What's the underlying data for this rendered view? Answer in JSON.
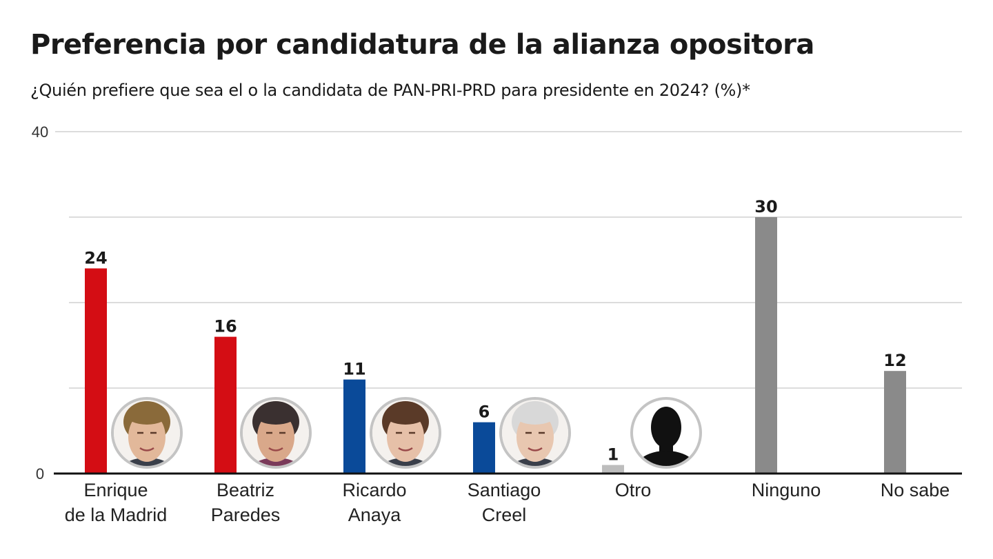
{
  "title": "Preferencia por candidatura de la alianza opositora",
  "subtitle": "¿Quién prefiere que sea el o la candidata de PAN-PRI-PRD para presidente en 2024? (%)*",
  "chart_data": {
    "type": "bar",
    "title": "Preferencia por candidatura de la alianza opositora",
    "subtitle": "¿Quién prefiere que sea el o la candidata de PAN-PRI-PRD para presidente en 2024? (%)*",
    "xlabel": "",
    "ylabel": "",
    "ylim": [
      0,
      40
    ],
    "yticks": [
      0,
      10,
      20,
      30,
      40
    ],
    "ytick_labels": [
      "0",
      "",
      "",
      "",
      "40"
    ],
    "grid": true,
    "categories": [
      [
        "Enrique",
        "de la Madrid"
      ],
      [
        "Beatriz",
        "Paredes"
      ],
      [
        "Ricardo",
        "Anaya"
      ],
      [
        "Santiago",
        "Creel"
      ],
      [
        "Otro"
      ],
      [
        "Ninguno"
      ],
      [
        "No sabe"
      ]
    ],
    "values": [
      24,
      16,
      11,
      6,
      1,
      30,
      12
    ],
    "value_labels": [
      "24",
      "16",
      "11",
      "6",
      "1",
      "30",
      "12"
    ],
    "colors": [
      "#d40d14",
      "#d40d14",
      "#0a4a99",
      "#0a4a99",
      "#bdbdbd",
      "#8a8a8a",
      "#8a8a8a"
    ],
    "portraits": [
      "enrique-de-la-madrid-photo",
      "beatriz-paredes-photo",
      "ricardo-anaya-photo",
      "santiago-creel-photo",
      "silhouette-icon",
      null,
      null
    ]
  }
}
